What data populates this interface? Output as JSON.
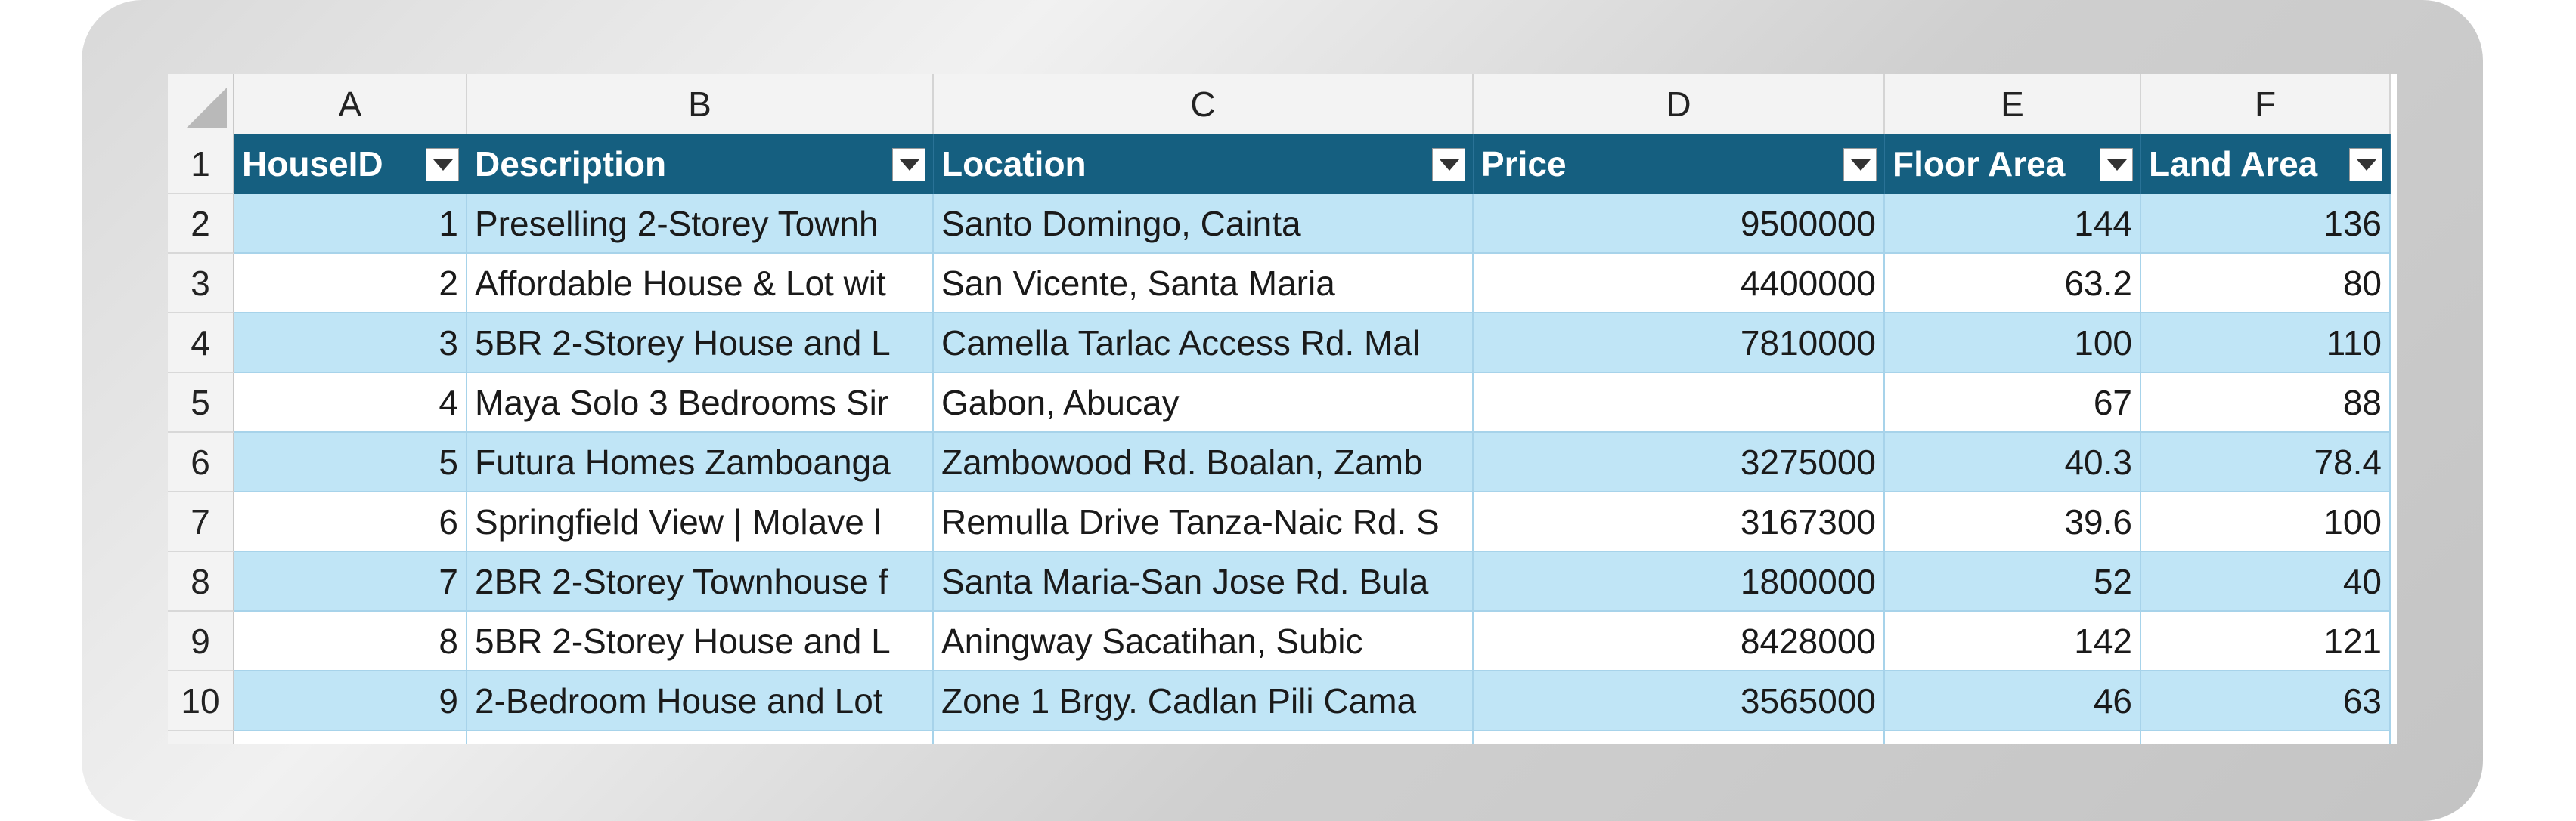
{
  "columns": [
    "A",
    "B",
    "C",
    "D",
    "E",
    "F"
  ],
  "headers": [
    "HouseID",
    "Description",
    "Location",
    "Price",
    "Floor Area",
    "Land Area"
  ],
  "rows": [
    {
      "row": "2",
      "id": "1",
      "desc": "Preselling 2-Storey Townh",
      "loc": "Santo Domingo, Cainta",
      "price": "9500000",
      "floor": "144",
      "land": "136"
    },
    {
      "row": "3",
      "id": "2",
      "desc": "Affordable House & Lot wit",
      "loc": "San Vicente, Santa Maria",
      "price": "4400000",
      "floor": "63.2",
      "land": "80"
    },
    {
      "row": "4",
      "id": "3",
      "desc": "5BR 2-Storey House and L",
      "loc": "Camella Tarlac Access Rd. Mal",
      "price": "7810000",
      "floor": "100",
      "land": "110"
    },
    {
      "row": "5",
      "id": "4",
      "desc": "Maya Solo 3 Bedrooms Sir",
      "loc": "Gabon, Abucay",
      "price": "",
      "floor": "67",
      "land": "88"
    },
    {
      "row": "6",
      "id": "5",
      "desc": "Futura Homes Zamboanga",
      "loc": "Zambowood Rd. Boalan, Zamb",
      "price": "3275000",
      "floor": "40.3",
      "land": "78.4"
    },
    {
      "row": "7",
      "id": "6",
      "desc": "Springfield View | Molave l",
      "loc": "Remulla Drive Tanza-Naic Rd. S",
      "price": "3167300",
      "floor": "39.6",
      "land": "100"
    },
    {
      "row": "8",
      "id": "7",
      "desc": "2BR 2-Storey Townhouse f",
      "loc": "Santa Maria-San Jose Rd. Bula",
      "price": "1800000",
      "floor": "52",
      "land": "40"
    },
    {
      "row": "9",
      "id": "8",
      "desc": "5BR 2-Storey House and L",
      "loc": "Aningway Sacatihan, Subic",
      "price": "8428000",
      "floor": "142",
      "land": "121"
    },
    {
      "row": "10",
      "id": "9",
      "desc": "2-Bedroom House and Lot",
      "loc": "Zone 1 Brgy. Cadlan Pili Cama",
      "price": "3565000",
      "floor": "46",
      "land": "63"
    }
  ],
  "row1_label": "1"
}
